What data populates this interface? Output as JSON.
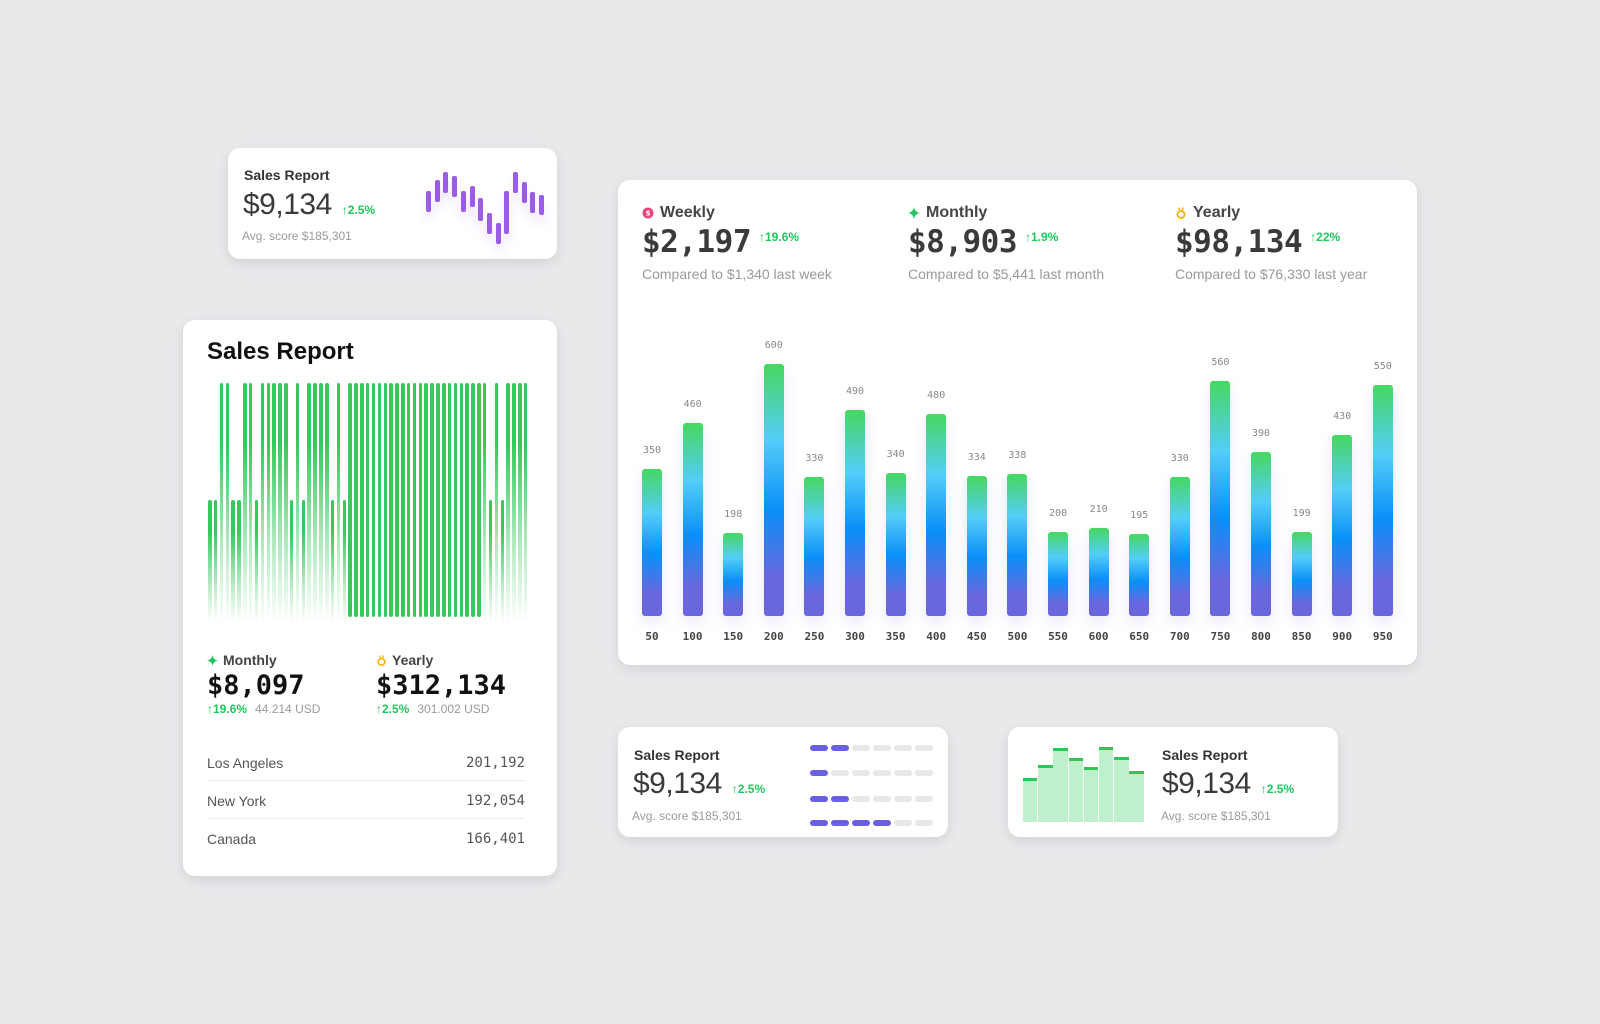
{
  "card_small_candles": {
    "title": "Sales Report",
    "value": "$9,134",
    "change": "↑2.5%",
    "avg": "Avg. score $185,301",
    "candles": [
      [
        59,
        38
      ],
      [
        70,
        48
      ],
      [
        78,
        57
      ],
      [
        74,
        53
      ],
      [
        59,
        38
      ],
      [
        64,
        43
      ],
      [
        52,
        29
      ],
      [
        37,
        16
      ],
      [
        27,
        6
      ],
      [
        59,
        16
      ],
      [
        78,
        57
      ],
      [
        68,
        47
      ],
      [
        58,
        37
      ],
      [
        55,
        35
      ]
    ],
    "color": "#9b5de5"
  },
  "main_card": {
    "stats": [
      {
        "icon": "pink-dollar-badge-icon",
        "color": "#e8457a",
        "label": "Weekly",
        "value": "$2,197",
        "change": "↑19.6%",
        "compare": "Compared to $1,340 last week"
      },
      {
        "icon": "green-sparkle-icon",
        "color": "#22c55e",
        "label": "Monthly",
        "value": "$8,903",
        "change": "↑1.9%",
        "compare": "Compared to $5,441 last month"
      },
      {
        "icon": "gold-medal-icon",
        "color": "#f5b400",
        "label": "Yearly",
        "value": "$98,134",
        "change": "↑22%",
        "compare": "Compared to $76,330 last year"
      }
    ]
  },
  "chart_data": {
    "type": "bar",
    "categories": [
      "50",
      "100",
      "150",
      "200",
      "250",
      "300",
      "350",
      "400",
      "450",
      "500",
      "550",
      "600",
      "650",
      "700",
      "750",
      "800",
      "850",
      "900",
      "950"
    ],
    "values": [
      350,
      460,
      198,
      600,
      330,
      490,
      340,
      480,
      334,
      338,
      200,
      210,
      195,
      330,
      560,
      390,
      199,
      430,
      550
    ],
    "ylim": [
      0,
      600
    ],
    "grid": false,
    "gradient": [
      "#45d860",
      "#54cdf8",
      "#0a8ff8",
      "#6a67de"
    ]
  },
  "big_card": {
    "title": "Sales Report",
    "barcode_levels": [
      "short",
      "short",
      "tall",
      "tall",
      "short",
      "short",
      "tall",
      "tall",
      "short",
      "tall",
      "tall",
      "tall",
      "tall",
      "tall",
      "short",
      "tall",
      "short",
      "tall",
      "tall",
      "tall",
      "tall",
      "short",
      "tall",
      "short",
      "solid",
      "solid",
      "solid",
      "solid",
      "solid",
      "solid",
      "solid",
      "solid",
      "solid",
      "solid",
      "solid",
      "solid",
      "solid",
      "solid",
      "solid",
      "solid",
      "solid",
      "solid",
      "solid",
      "solid",
      "solid",
      "solid",
      "solid",
      "tall",
      "short",
      "tall",
      "short",
      "tall",
      "tall",
      "tall",
      "tall"
    ],
    "color": "#22c55e",
    "stats": [
      {
        "icon": "green-sparkle-icon",
        "label": "Monthly",
        "value": "$8,097",
        "change": "↑19.6%",
        "sub": "44.214 USD"
      },
      {
        "icon": "gold-medal-icon",
        "label": "Yearly",
        "value": "$312,134",
        "change": "↑2.5%",
        "sub": "301.002 USD"
      }
    ],
    "rows": [
      {
        "name": "Los Angeles",
        "value": "201,192"
      },
      {
        "name": "New York",
        "value": "192,054"
      },
      {
        "name": "Canada",
        "value": "166,401"
      }
    ]
  },
  "card_pills": {
    "title": "Sales Report",
    "value": "$9,134",
    "change": "↑2.5%",
    "avg": "Avg. score $185,301",
    "filled": [
      2,
      1,
      2,
      4
    ],
    "total": 6
  },
  "card_histogram": {
    "title": "Sales Report",
    "value": "$9,134",
    "change": "↑2.5%",
    "avg": "Avg. score $185,301",
    "bars": [
      44,
      57,
      74,
      64,
      55,
      75,
      65,
      51
    ]
  }
}
